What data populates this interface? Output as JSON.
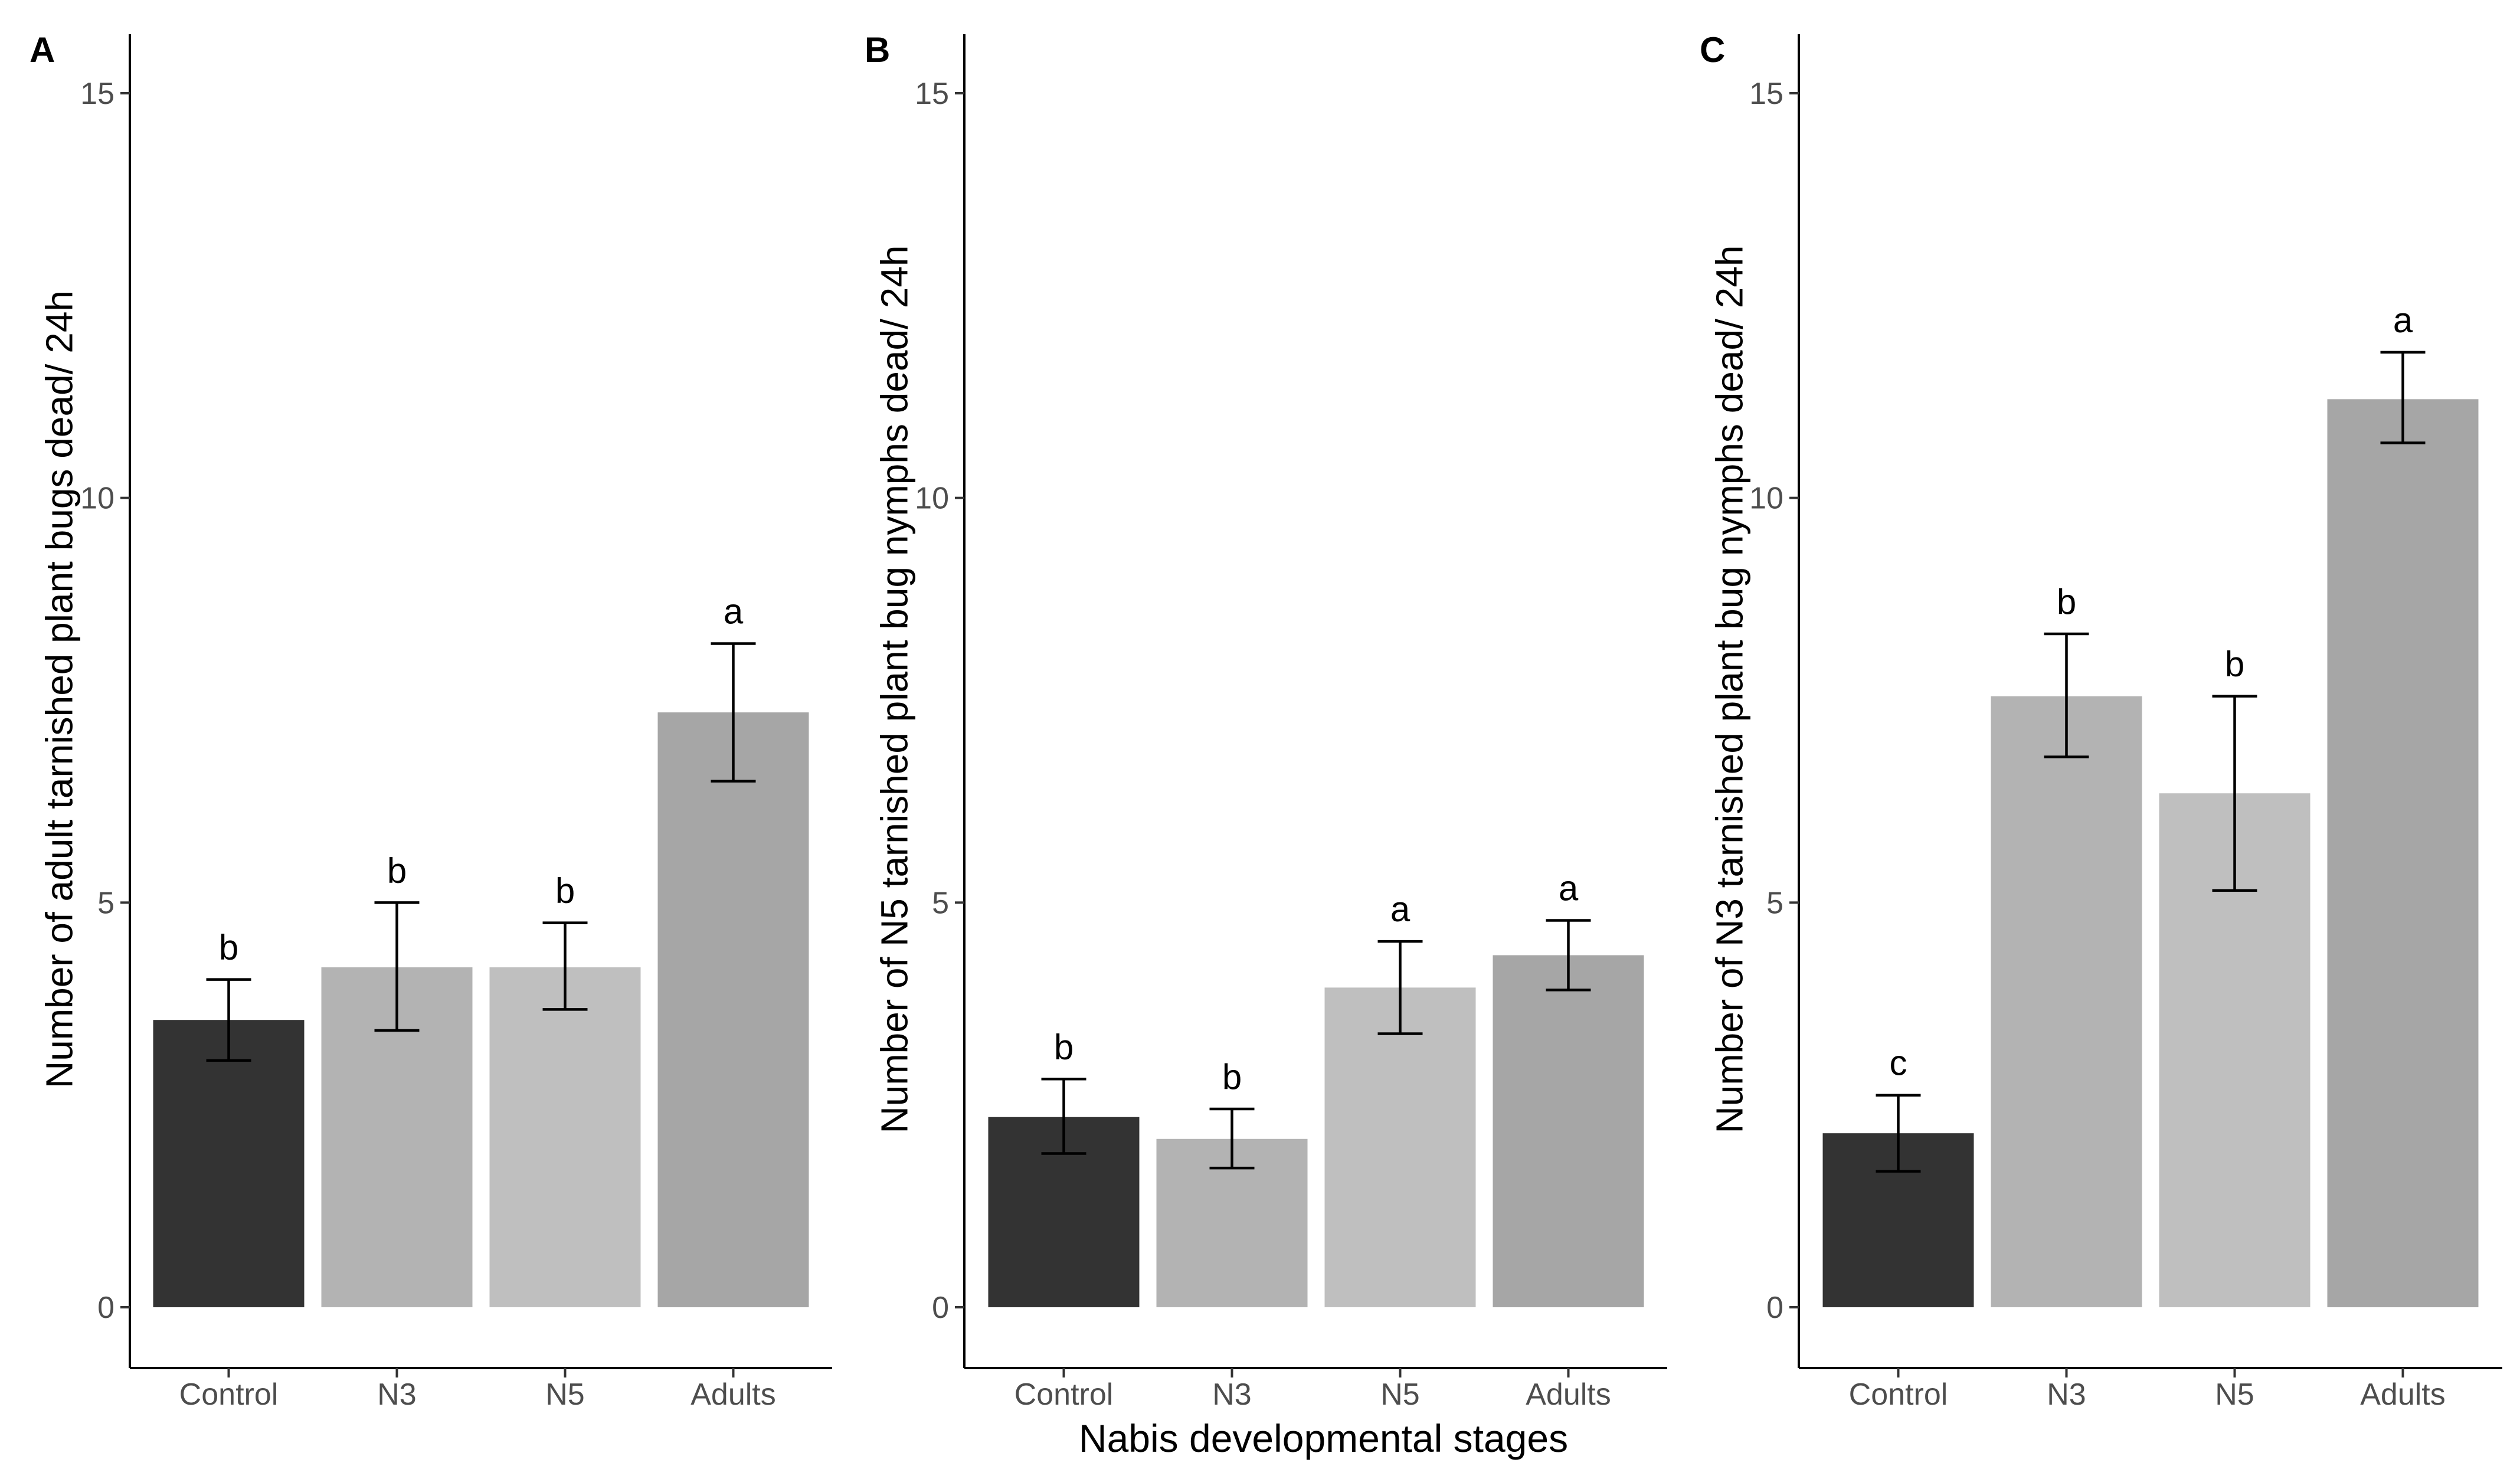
{
  "chart_data": [
    {
      "type": "bar",
      "panel": "A",
      "categories": [
        "Control",
        "N3",
        "N5",
        "Adults"
      ],
      "values": [
        3.55,
        4.2,
        4.2,
        7.35
      ],
      "error_low": [
        3.05,
        3.42,
        3.68,
        6.5
      ],
      "error_high": [
        4.05,
        5.0,
        4.75,
        8.2
      ],
      "significance": [
        "b",
        "b",
        "b",
        "a"
      ],
      "colors": [
        "#333333",
        "#b3b3b3",
        "#bfbfbf",
        "#a6a6a6"
      ],
      "ylabel": "Number of adult tarnished plant bugs dead/ 24h",
      "xlabel": "",
      "ylim": [
        0,
        15
      ],
      "yticks": [
        0,
        5,
        10,
        15
      ],
      "grid": false
    },
    {
      "type": "bar",
      "panel": "B",
      "categories": [
        "Control",
        "N3",
        "N5",
        "Adults"
      ],
      "values": [
        2.35,
        2.08,
        3.95,
        4.35
      ],
      "error_low": [
        1.9,
        1.72,
        3.38,
        3.92
      ],
      "error_high": [
        2.82,
        2.45,
        4.52,
        4.78
      ],
      "significance": [
        "b",
        "b",
        "a",
        "a"
      ],
      "colors": [
        "#333333",
        "#b3b3b3",
        "#bfbfbf",
        "#a6a6a6"
      ],
      "ylabel": "Number of N5 tarnished plant bug nymphs dead/ 24h",
      "xlabel": "Nabis developmental stages",
      "ylim": [
        0,
        15
      ],
      "yticks": [
        0,
        5,
        10,
        15
      ],
      "grid": false
    },
    {
      "type": "bar",
      "panel": "C",
      "categories": [
        "Control",
        "N3",
        "N5",
        "Adults"
      ],
      "values": [
        2.15,
        7.55,
        6.35,
        11.22
      ],
      "error_low": [
        1.68,
        6.8,
        5.15,
        10.68
      ],
      "error_high": [
        2.62,
        8.32,
        7.55,
        11.8
      ],
      "significance": [
        "c",
        "b",
        "b",
        "a"
      ],
      "colors": [
        "#333333",
        "#b3b3b3",
        "#bfbfbf",
        "#a6a6a6"
      ],
      "ylabel": "Number of N3 tarnished plant bug nymphs dead/ 24h",
      "xlabel": "",
      "ylim": [
        0,
        15
      ],
      "yticks": [
        0,
        5,
        10,
        15
      ],
      "grid": false
    }
  ]
}
